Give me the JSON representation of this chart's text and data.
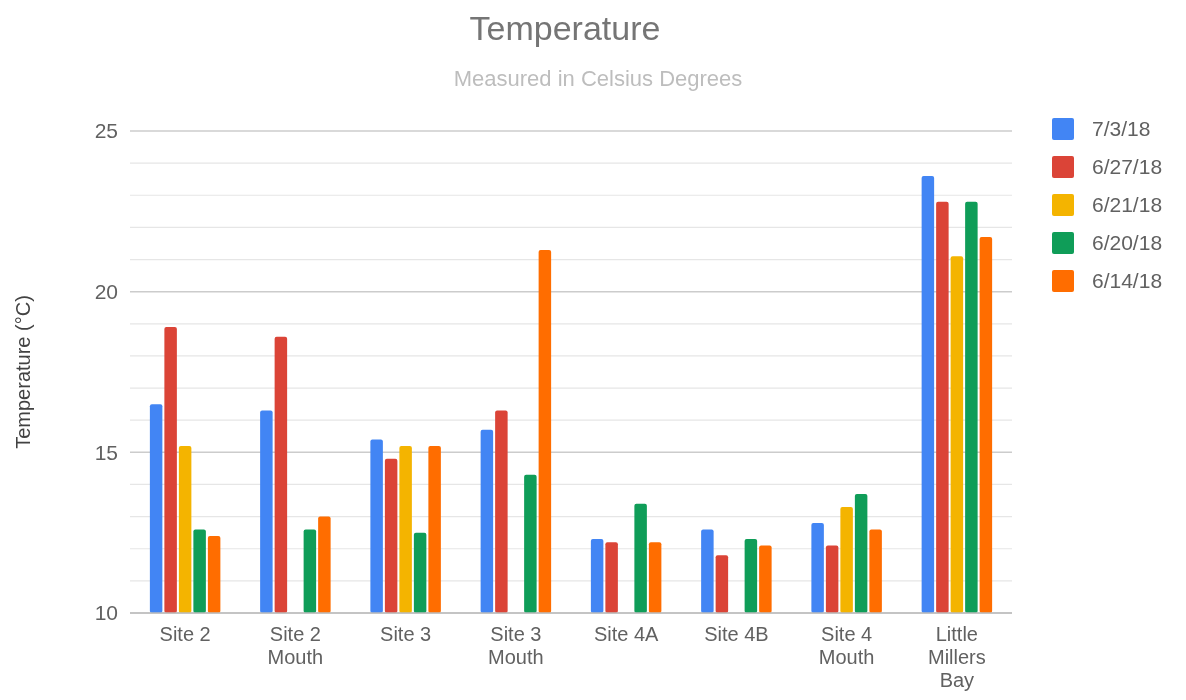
{
  "chart_data": {
    "type": "bar",
    "title": "Temperature",
    "subtitle": "Measured in Celsius Degrees",
    "ylabel": "Temperature (°C)",
    "categories": [
      "Site 2",
      "Site 2 Mouth",
      "Site 3",
      "Site 3 Mouth",
      "Site 4A",
      "Site 4B",
      "Site 4 Mouth",
      "Little Millers Bay"
    ],
    "series": [
      {
        "name": "7/3/18",
        "color": "#4285f4",
        "values": [
          16.5,
          16.3,
          15.4,
          15.7,
          12.3,
          12.6,
          12.8,
          23.6
        ]
      },
      {
        "name": "6/27/18",
        "color": "#db4437",
        "values": [
          18.9,
          18.6,
          14.8,
          16.3,
          12.2,
          11.8,
          12.1,
          22.8
        ]
      },
      {
        "name": "6/21/18",
        "color": "#f4b400",
        "values": [
          15.2,
          null,
          15.2,
          null,
          null,
          null,
          13.3,
          21.1
        ]
      },
      {
        "name": "6/20/18",
        "color": "#0f9d58",
        "values": [
          12.6,
          12.6,
          12.5,
          14.3,
          13.4,
          12.3,
          13.7,
          22.8
        ]
      },
      {
        "name": "6/14/18",
        "color": "#ff6d00",
        "values": [
          12.4,
          13.0,
          15.2,
          21.3,
          12.2,
          12.1,
          12.6,
          21.7
        ]
      }
    ],
    "ylim": [
      10,
      25
    ],
    "yticks": [
      10,
      {
        "value": 11,
        "label": null
      },
      {
        "value": 12,
        "label": null
      },
      {
        "value": 13,
        "label": null
      },
      {
        "value": 14,
        "label": null
      },
      15,
      {
        "value": 16,
        "label": null
      },
      {
        "value": 17,
        "label": null
      },
      {
        "value": 18,
        "label": null
      },
      {
        "value": 19,
        "label": null
      },
      20,
      {
        "value": 21,
        "label": null
      },
      {
        "value": 22,
        "label": null
      },
      {
        "value": 23,
        "label": null
      },
      {
        "value": 24,
        "label": null
      },
      25
    ],
    "grid": true,
    "legend": "top right"
  }
}
